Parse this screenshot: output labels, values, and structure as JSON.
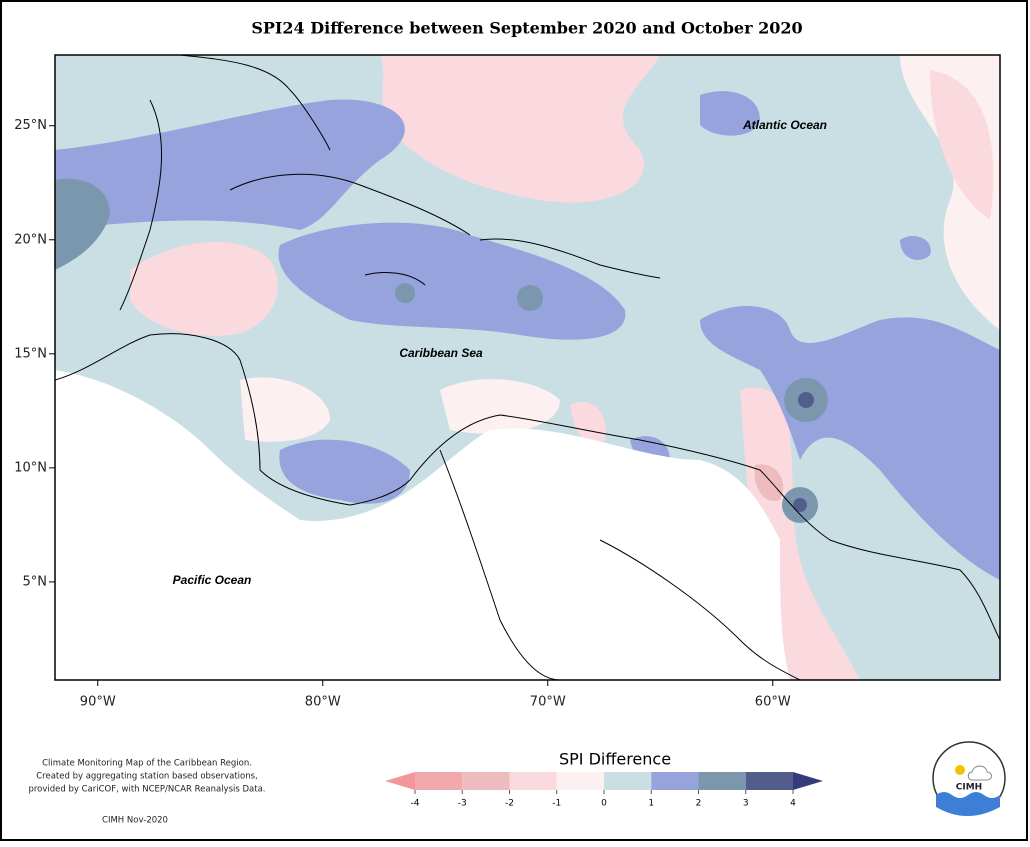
{
  "map": {
    "title": "SPI24 Difference between September 2020 and October 2020",
    "xlim": [
      -91.9,
      -49.9
    ],
    "ylim": [
      0.7,
      28.1
    ],
    "xticks": [
      {
        "value": -90,
        "label": "90°W"
      },
      {
        "value": -80,
        "label": "80°W"
      },
      {
        "value": -70,
        "label": "70°W"
      },
      {
        "value": -60,
        "label": "60°W"
      }
    ],
    "yticks": [
      {
        "value": 5,
        "label": "5°N"
      },
      {
        "value": 10,
        "label": "10°N"
      },
      {
        "value": 15,
        "label": "15°N"
      },
      {
        "value": 20,
        "label": "20°N"
      },
      {
        "value": 25,
        "label": "25°N"
      }
    ],
    "labels": [
      "Atlantic Ocean",
      "Caribbean Sea",
      "Pacific Ocean"
    ],
    "legend": {
      "title": "SPI Difference",
      "ticks": [
        -4,
        -3,
        -2,
        -1,
        0,
        1,
        2,
        3,
        4
      ],
      "colors": [
        "#f4959c",
        "#f2a9ae",
        "#eebcbf",
        "#fadadf",
        "#fdf0f1",
        "#c9dfe4",
        "#97a3dd",
        "#7b97ae",
        "#535d8c",
        "#353b7a"
      ]
    },
    "notes": [
      "Climate Monitoring Map of the Caribbean Region.",
      "Created by aggregating station based observations,",
      "provided by CariCOF, with NCEP/NCAR Reanalysis Data.",
      "CIMH Nov-2020"
    ],
    "logo": "CIMH"
  }
}
